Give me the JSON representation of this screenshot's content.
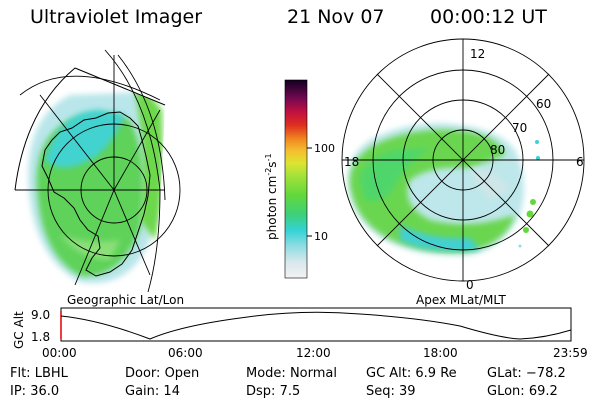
{
  "header": {
    "title": "Ultraviolet Imager",
    "date": "21 Nov 07",
    "time": "00:00:12 UT"
  },
  "left_map": {
    "label": "Geographic Lat/Lon"
  },
  "colorbar": {
    "unit_label": "photon cm",
    "unit_sup1": "-2",
    "unit_mid": "s",
    "unit_sup2": "-1",
    "ticks": [
      "100",
      "10"
    ]
  },
  "right_map": {
    "label": "Apex MLat/MLT",
    "mlt_labels": {
      "top": "12",
      "left": "18",
      "right": "6",
      "bottom": "0"
    },
    "lat_labels": [
      "60",
      "70",
      "80"
    ]
  },
  "altitude_plot": {
    "ylabel": "GC Alt",
    "yticks": [
      "9.0",
      "1.8"
    ],
    "xticks": [
      "00:00",
      "06:00",
      "12:00",
      "18:00",
      "23:59"
    ]
  },
  "info": {
    "row1": [
      {
        "label": "Flt:",
        "value": "LBHL"
      },
      {
        "label": "Door:",
        "value": "Open"
      },
      {
        "label": "Mode:",
        "value": "Normal"
      },
      {
        "label": "GC Alt:",
        "value": "6.9 Re"
      },
      {
        "label": "GLat:",
        "value": "−78.2"
      }
    ],
    "row2": [
      {
        "label": "IP:",
        "value": "36.0"
      },
      {
        "label": "Gain:",
        "value": "14"
      },
      {
        "label": "Dsp:",
        "value": "7.5"
      },
      {
        "label": "Seq:",
        "value": "39"
      },
      {
        "label": "GLon:",
        "value": "69.2"
      }
    ]
  }
}
